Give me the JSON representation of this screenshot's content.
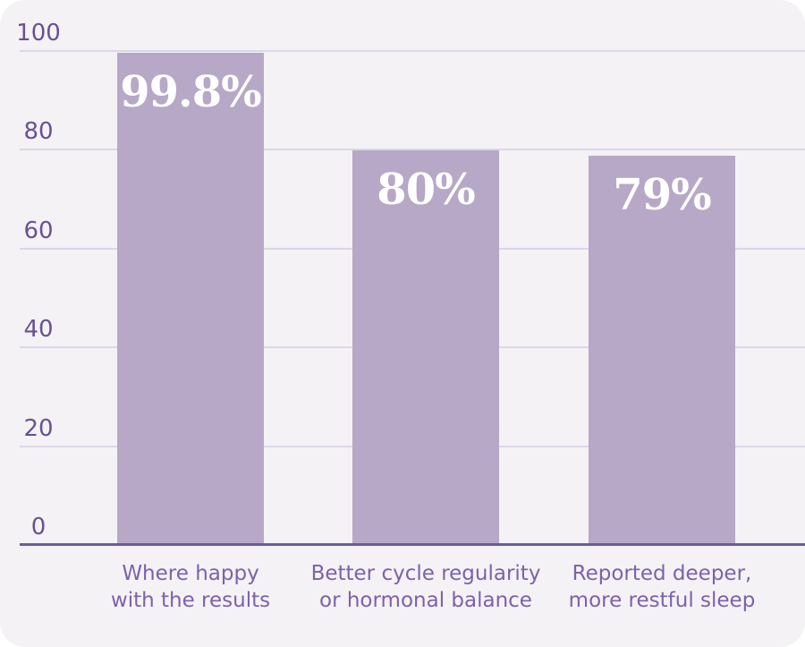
{
  "chart_data": {
    "type": "bar",
    "title": "",
    "xlabel": "",
    "ylabel": "",
    "categories": [
      [
        "Where happy",
        "with the results"
      ],
      [
        "Better cycle regularity",
        "or hormonal balance"
      ],
      [
        "Reported deeper,",
        "more restful sleep"
      ]
    ],
    "values": [
      99.8,
      80,
      79
    ],
    "bar_labels": [
      "99.8%",
      "80%",
      "79%"
    ],
    "ylim": [
      0,
      100
    ],
    "yticks": [
      0,
      20,
      40,
      60,
      80,
      100
    ],
    "grid": true,
    "legend": false,
    "colors": {
      "page_bg": "#ffffff",
      "card_bg": "#f4f2f5",
      "bar": "#b6a8c6",
      "gridline": "#ddd6e8",
      "baseline": "#6b5b99",
      "tick_label": "#6a5193",
      "category_label": "#7d61ab",
      "value_label": "#ffffff"
    }
  }
}
